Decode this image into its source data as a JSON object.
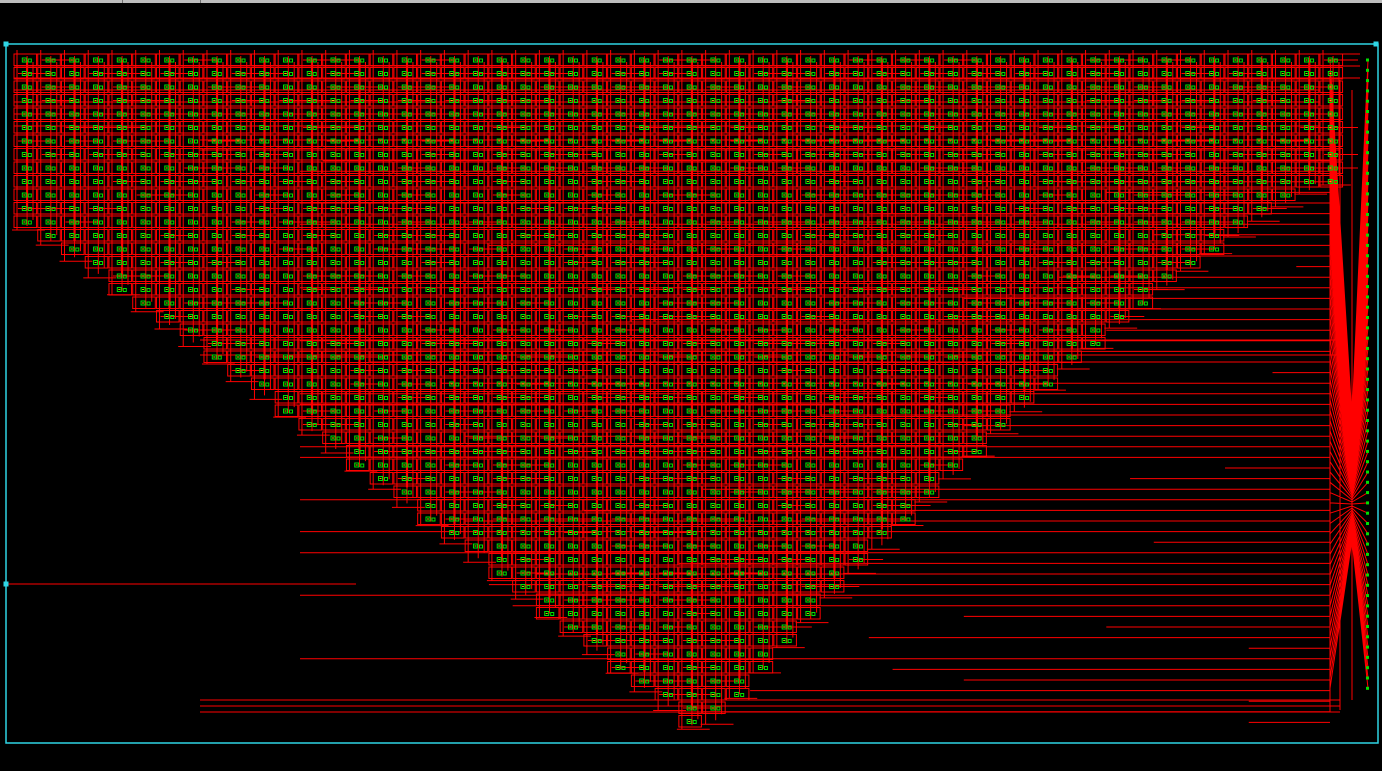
{
  "viewer": {
    "name": "schematic-viewer",
    "background_color": "#000000",
    "boundary_color": "#2fd6e6",
    "wire_color": "#ff0000",
    "cell_color": "#00e000",
    "cell_symbol_color": "#ffff00",
    "port_color": "#2fd6e6",
    "toolbar_strip_color": "#bdbdbd"
  },
  "schematic": {
    "columns": 56,
    "top_rows": 7,
    "right_output_ports": 62,
    "left_input_ports": 3,
    "shape": "inverted-triangle cell array"
  }
}
